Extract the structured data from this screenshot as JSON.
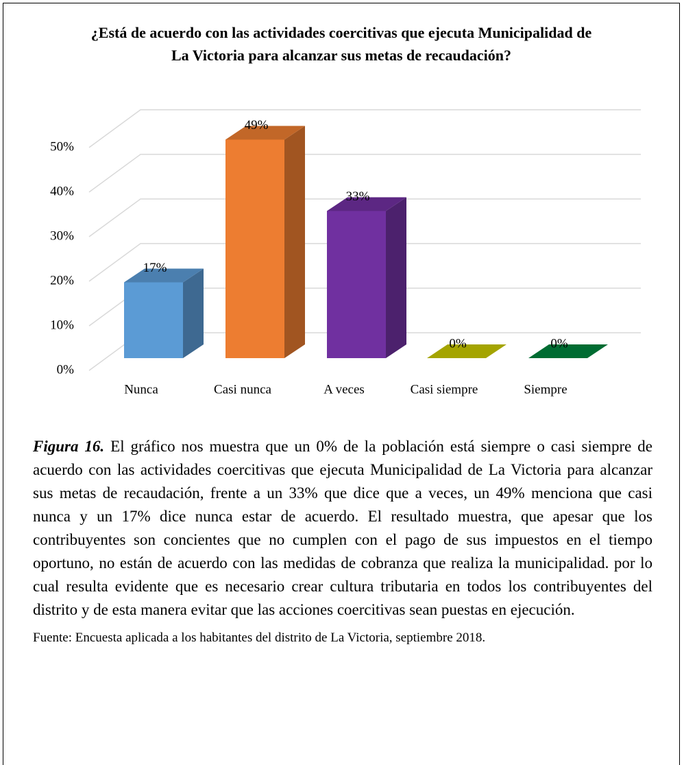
{
  "chart_data": {
    "type": "bar3d",
    "title": "¿Está de acuerdo con las actividades coercitivas que ejecuta Municipalidad de La Victoria para alcanzar sus metas de recaudación?",
    "categories": [
      "Nunca",
      "Casi nunca",
      "A veces",
      "Casi siempre",
      "Siempre"
    ],
    "values": [
      17,
      49,
      33,
      0,
      0
    ],
    "value_labels": [
      "17%",
      "49%",
      "33%",
      "0%",
      "0%"
    ],
    "colors": [
      "#5b9bd5",
      "#ed7d31",
      "#7030a0",
      "#c8c800",
      "#00843d"
    ],
    "ylim": [
      0,
      50
    ],
    "yticks": [
      {
        "value": 0,
        "label": "0%"
      },
      {
        "value": 10,
        "label": "10%"
      },
      {
        "value": 20,
        "label": "20%"
      },
      {
        "value": 30,
        "label": "30%"
      },
      {
        "value": 40,
        "label": "40%"
      },
      {
        "value": 50,
        "label": "50%"
      }
    ],
    "grid": true
  },
  "caption": {
    "label": "Figura 16.",
    "text": " El gráfico nos muestra que un 0% de la población está siempre o casi siempre de acuerdo con las actividades coercitivas que ejecuta Municipalidad de La Victoria para alcanzar sus metas de recaudación, frente a un 33% que dice que a veces, un 49% menciona que casi nunca y un 17% dice nunca estar de acuerdo. El resultado muestra, que apesar que los contribuyentes son concientes que no cumplen con el pago de sus impuestos en el tiempo oportuno, no están de acuerdo con las medidas de cobranza que realiza la municipalidad. por lo cual resulta evidente que es necesario crear cultura tributaria en todos los contribuyentes del distrito y de esta manera evitar que las acciones coercitivas sean puestas en ejecución."
  },
  "source": "Fuente: Encuesta aplicada a los habitantes del distrito de La Victoria, septiembre 2018."
}
